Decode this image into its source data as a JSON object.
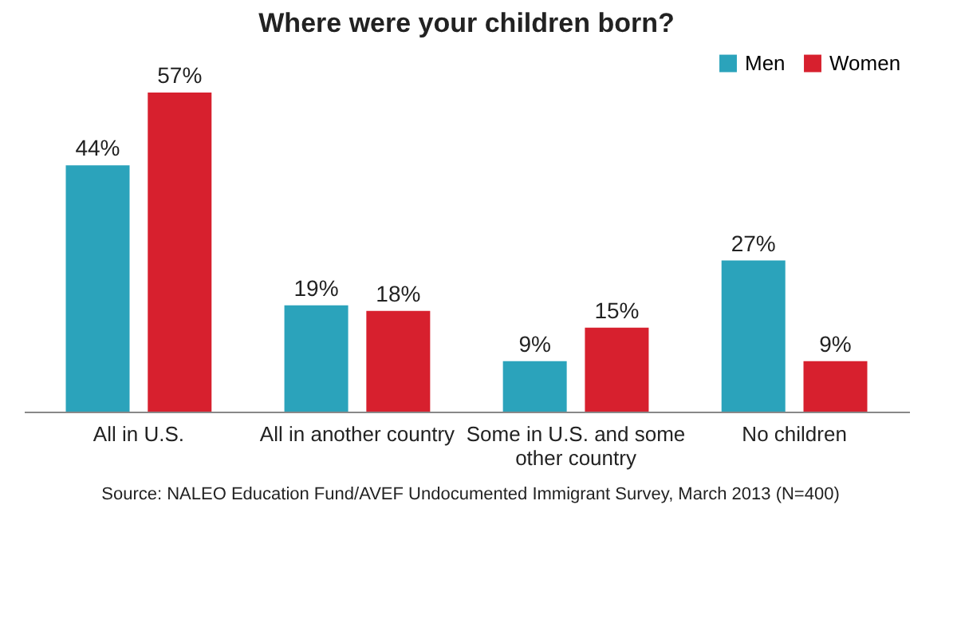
{
  "chart_data": {
    "type": "bar",
    "title": "Where were your children born?",
    "categories": [
      "All in U.S.",
      "All in another country",
      "Some in U.S. and some other country",
      "No children"
    ],
    "series": [
      {
        "name": "Men",
        "color": "#2ba3bb",
        "values": [
          44,
          19,
          9,
          27
        ],
        "value_labels": [
          "44%",
          "19%",
          "9%",
          "27%"
        ]
      },
      {
        "name": "Women",
        "color": "#d7202e",
        "values": [
          57,
          18,
          15,
          9
        ],
        "value_labels": [
          "57%",
          "18%",
          "15%",
          "9%"
        ]
      }
    ],
    "legend": "top right",
    "grid": false,
    "annotations": [
      "Source: NALEO Education Fund/AVEF Undocumented Immigrant Survey, March 2013 (N=400)"
    ]
  }
}
